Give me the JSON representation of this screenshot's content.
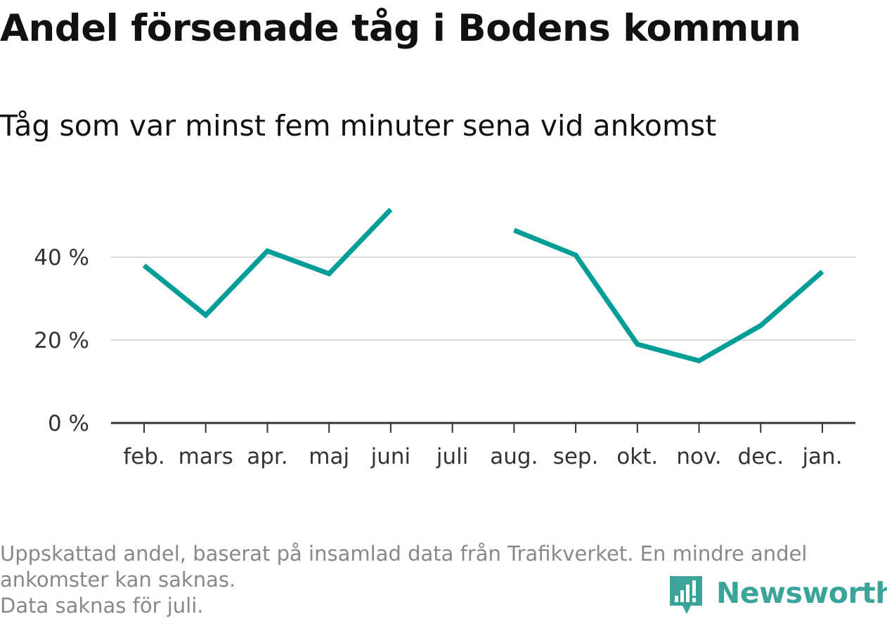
{
  "title": "Andel försenade tåg i Bodens kommun",
  "subtitle": "Tåg som var minst fem minuter sena vid ankomst",
  "footnote": {
    "line1": "Uppskattad andel, baserat på insamlad data från Trafikverket. En mindre andel",
    "line2": "ankomster kan saknas.",
    "line3": "Data saknas för juli."
  },
  "logo": {
    "text": "Newsworthy",
    "color": "#3aa39a",
    "icon": "bar-chart-speech-bubble-icon"
  },
  "chart_data": {
    "type": "line",
    "categories": [
      "feb.",
      "mars",
      "apr.",
      "maj",
      "juni",
      "juli",
      "aug.",
      "sep.",
      "okt.",
      "nov.",
      "dec.",
      "jan."
    ],
    "series": [
      {
        "color": "#009e96",
        "values": [
          38,
          26,
          41.5,
          36,
          51.5,
          null,
          46.5,
          40.5,
          19,
          15,
          23.5,
          36.5
        ]
      }
    ],
    "yticks": [
      {
        "value": 0,
        "label": "0 %"
      },
      {
        "value": 20,
        "label": "20 %"
      },
      {
        "value": 40,
        "label": "40 %"
      }
    ],
    "ylim": [
      0,
      52
    ],
    "grid": true,
    "legend": "none",
    "colors": {
      "gridline": "#dcdcdc",
      "axis": "#333333"
    }
  }
}
